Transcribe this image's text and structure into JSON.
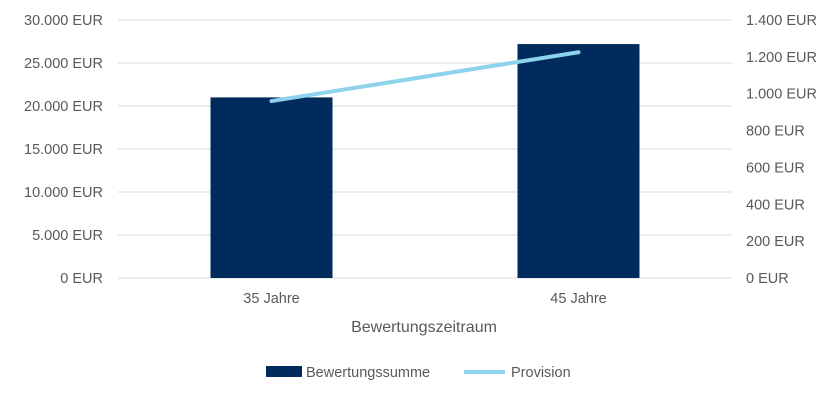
{
  "chart_data": {
    "type": "bar+line",
    "categories": [
      "35 Jahre",
      "45 Jahre"
    ],
    "xlabel": "Bewertungszeitraum",
    "series": [
      {
        "name": "Bewertungssumme",
        "type": "bar",
        "axis": "left",
        "values": [
          21000,
          27200
        ],
        "color": "#002B5C"
      },
      {
        "name": "Provision",
        "type": "line",
        "axis": "right",
        "values": [
          960,
          1225
        ],
        "color": "#8DD3EC"
      }
    ],
    "y_left": {
      "ylim": [
        0,
        30000
      ],
      "ticks": [
        0,
        5000,
        10000,
        15000,
        20000,
        25000,
        30000
      ],
      "tick_labels": [
        "0 EUR",
        "5.000 EUR",
        "10.000 EUR",
        "15.000 EUR",
        "20.000 EUR",
        "25.000 EUR",
        "30.000 EUR"
      ]
    },
    "y_right": {
      "ylim": [
        0,
        1400
      ],
      "ticks": [
        0,
        200,
        400,
        600,
        800,
        1000,
        1200,
        1400
      ],
      "tick_labels": [
        "0 EUR",
        "200 EUR",
        "400 EUR",
        "600 EUR",
        "800 EUR",
        "1.000 EUR",
        "1.200 EUR",
        "1.400 EUR"
      ]
    },
    "grid": true,
    "grid_color": "#D9D9D9",
    "legend_position": "bottom"
  }
}
